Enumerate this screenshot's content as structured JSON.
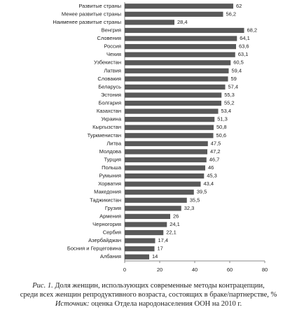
{
  "chart_data": {
    "type": "bar",
    "orientation": "horizontal",
    "categories": [
      "Развитые страны",
      "Менее развитые страны",
      "Наименее развитые страны",
      "Венгрия",
      "Словения",
      "Россия",
      "Чехия",
      "Узбекистан",
      "Латвия",
      "Словакия",
      "Беларусь",
      "Эстония",
      "Болгария",
      "Казахстан",
      "Украина",
      "Кыргызстан",
      "Туркменистан",
      "Литва",
      "Молдова",
      "Турция",
      "Польша",
      "Румыния",
      "Хорватия",
      "Македония",
      "Таджикистан",
      "Грузия",
      "Армения",
      "Черногория",
      "Сербия",
      "Азербайджан",
      "Босния и Герцеговина",
      "Албания"
    ],
    "values": [
      62,
      56.2,
      28.4,
      68.2,
      64.1,
      63.6,
      63.1,
      60.5,
      59.4,
      59,
      57.4,
      55.3,
      55.2,
      53.4,
      51.3,
      50.8,
      50.6,
      47.5,
      47.2,
      46.7,
      46,
      45.3,
      43.4,
      39.5,
      35.5,
      32.3,
      26,
      24.1,
      22.1,
      17.4,
      17,
      14
    ],
    "value_labels": [
      "62",
      "56,2",
      "28,4",
      "68,2",
      "64,1",
      "63,6",
      "63,1",
      "60,5",
      "59,4",
      "59",
      "57,4",
      "55,3",
      "55,2",
      "53,4",
      "51,3",
      "50,8",
      "50,6",
      "47,5",
      "47,2",
      "46,7",
      "46",
      "45,3",
      "43,4",
      "39,5",
      "35,5",
      "32,3",
      "26",
      "24,1",
      "22,1",
      "17,4",
      "17",
      "14"
    ],
    "color": "#595959",
    "xlim": [
      0,
      80
    ],
    "xticks": [
      0,
      20,
      40,
      60,
      80
    ]
  },
  "caption": {
    "figure_label": "Рис. 1.",
    "lines": [
      "Доля женщин, использующих современные методы контрацепции,",
      "среди всех женщин репродуктивного возраста, состоящих в браке/партнерстве, %"
    ],
    "source_label": "Источник:",
    "source_text": "оценка Отдела народонаселения ООН на 2010 г."
  }
}
